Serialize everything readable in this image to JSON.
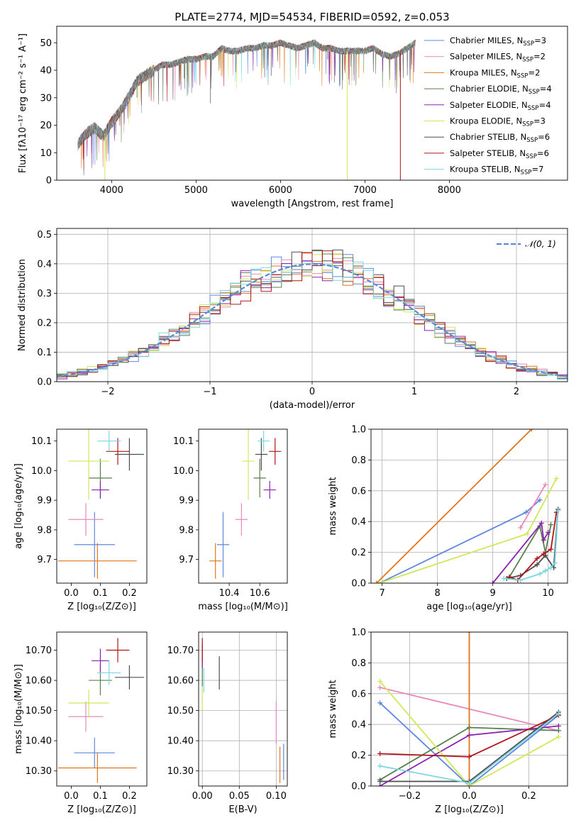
{
  "title": "PLATE=2774, MJD=54534, FIBERID=0592, z=0.053",
  "colors": {
    "Chabrier MILES": "#5f87e0",
    "Salpeter MILES": "#e889b9",
    "Kroupa MILES": "#e0761a",
    "Chabrier ELODIE": "#5a7f4e",
    "Salpeter ELODIE": "#8b22b0",
    "Kroupa ELODIE": "#cfe85a",
    "Chabrier STELIB": "#4e4e4e",
    "Salpeter STELIB": "#b01419",
    "Kroupa STELIB": "#7ad8e0",
    "normal": "#5b8ad6",
    "grid": "#b0b0b0"
  },
  "chart_data": [
    {
      "id": "spectrum",
      "type": "line",
      "title": "PLATE=2774, MJD=54534, FIBERID=0592, z=0.053",
      "xlabel": "wavelength [Angstrom, rest frame]",
      "ylabel": "Flux [fλ10⁻¹⁷ erg cm⁻² s⁻¹ A⁻¹]",
      "xlim": [
        3350,
        9400
      ],
      "ylim": [
        0,
        56
      ],
      "xticks": [
        4000,
        5000,
        6000,
        7000,
        8000
      ],
      "yticks": [
        0,
        10,
        20,
        30,
        40,
        50
      ],
      "grid": false,
      "legend_position": "upper right",
      "x_range_data": [
        3600,
        7600
      ],
      "envelope": {
        "x": [
          3600,
          3700,
          3800,
          3900,
          4000,
          4100,
          4200,
          4300,
          4400,
          4500,
          4600,
          4700,
          4800,
          4900,
          5000,
          5100,
          5200,
          5300,
          5400,
          5500,
          5600,
          5700,
          5800,
          5900,
          6000,
          6100,
          6200,
          6300,
          6400,
          6500,
          6600,
          6700,
          6800,
          6900,
          7000,
          7100,
          7200,
          7300,
          7400,
          7500,
          7600
        ],
        "y": [
          13,
          17,
          19,
          16,
          21,
          25,
          30,
          36,
          38,
          40,
          42,
          42,
          43,
          44,
          44,
          45,
          45,
          48,
          47,
          47,
          48,
          48,
          49,
          49,
          50,
          49,
          48,
          49,
          50,
          48,
          48,
          47,
          47,
          47,
          47,
          48,
          46,
          45,
          46,
          48,
          50
        ]
      },
      "series": [
        {
          "name": "Chabrier MILES, N$_{SSP}$=3",
          "label_main": "Chabrier MILES, N",
          "label_sub": "SSP",
          "label_tail": "=3"
        },
        {
          "name": "Salpeter MILES, N$_{SSP}$=2",
          "label_main": "Salpeter MILES, N",
          "label_sub": "SSP",
          "label_tail": "=2"
        },
        {
          "name": "Kroupa MILES, N$_{SSP}$=2",
          "label_main": "Kroupa MILES, N",
          "label_sub": "SSP",
          "label_tail": "=2"
        },
        {
          "name": "Chabrier ELODIE, N$_{SSP}$=4",
          "label_main": "Chabrier ELODIE, N",
          "label_sub": "SSP",
          "label_tail": "=4"
        },
        {
          "name": "Salpeter ELODIE, N$_{SSP}$=4",
          "label_main": "Salpeter ELODIE, N",
          "label_sub": "SSP",
          "label_tail": "=4"
        },
        {
          "name": "Kroupa ELODIE, N$_{SSP}$=3",
          "label_main": "Kroupa ELODIE, N",
          "label_sub": "SSP",
          "label_tail": "=3"
        },
        {
          "name": "Chabrier STELIB, N$_{SSP}$=6",
          "label_main": "Chabrier STELIB, N",
          "label_sub": "SSP",
          "label_tail": "=6"
        },
        {
          "name": "Salpeter STELIB, N$_{SSP}$=6",
          "label_main": "Salpeter STELIB, N",
          "label_sub": "SSP",
          "label_tail": "=6"
        },
        {
          "name": "Kroupa STELIB, N$_{SSP}$=7",
          "label_main": "Kroupa STELIB, N",
          "label_sub": "SSP",
          "label_tail": "=7"
        }
      ],
      "drop_lines": [
        {
          "x": 3920,
          "color": "Kroupa ELODIE"
        },
        {
          "x": 6790,
          "color": "Kroupa ELODIE"
        },
        {
          "x": 7420,
          "color": "Salpeter STELIB"
        }
      ]
    },
    {
      "id": "residuals",
      "type": "histogram",
      "xlabel": "(data-model)/error",
      "ylabel": "Normed distribution",
      "xlim": [
        -2.5,
        2.5
      ],
      "ylim": [
        0,
        0.52
      ],
      "xticks": [
        -2,
        -1,
        0,
        1,
        2
      ],
      "yticks": [
        0.0,
        0.1,
        0.2,
        0.3,
        0.4,
        0.5
      ],
      "grid": true,
      "legend_position": "upper right",
      "legend_label": "𝒩(0, 1)",
      "bin_width": 0.1,
      "normal_curve": {
        "mean": 0,
        "sigma": 1
      }
    },
    {
      "id": "age_vs_Z",
      "type": "errorbar",
      "xlabel": "Z [log₁₀(Z/Z⊙)]",
      "ylabel": "age  [log₁₀(age/yr)]",
      "xlim": [
        -0.05,
        0.26
      ],
      "ylim": [
        9.62,
        10.14
      ],
      "xticks": [
        0.0,
        0.1,
        0.2
      ],
      "yticks": [
        9.7,
        9.8,
        9.9,
        10.0,
        10.1
      ],
      "grid": false,
      "points": [
        {
          "model": "Chabrier MILES",
          "x": 0.08,
          "xerr": 0.07,
          "y": 9.75,
          "yerr": 0.11
        },
        {
          "model": "Salpeter MILES",
          "x": 0.05,
          "xerr": 0.06,
          "y": 9.835,
          "yerr": 0.055
        },
        {
          "model": "Kroupa MILES",
          "x": 0.09,
          "xerr": 0.135,
          "y": 9.695,
          "yerr": 0.06
        },
        {
          "model": "Chabrier ELODIE",
          "x": 0.1,
          "xerr": 0.04,
          "y": 9.975,
          "yerr": 0.065
        },
        {
          "model": "Salpeter ELODIE",
          "x": 0.1,
          "xerr": 0.03,
          "y": 9.935,
          "yerr": 0.03
        },
        {
          "model": "Kroupa ELODIE",
          "x": 0.06,
          "xerr": 0.07,
          "y": 10.032,
          "yerr": 0.13
        },
        {
          "model": "Chabrier STELIB",
          "x": 0.2,
          "xerr": 0.05,
          "y": 10.055,
          "yerr": 0.055
        },
        {
          "model": "Salpeter STELIB",
          "x": 0.16,
          "xerr": 0.04,
          "y": 10.065,
          "yerr": 0.045
        },
        {
          "model": "Kroupa STELIB",
          "x": 0.13,
          "xerr": 0.04,
          "y": 10.1,
          "yerr": 0.035
        }
      ]
    },
    {
      "id": "age_vs_mass",
      "type": "errorbar",
      "xlabel": "mass [log₁₀(M/M⊙)]",
      "ylabel": "",
      "xlim": [
        10.2,
        10.78
      ],
      "ylim": [
        9.62,
        10.14
      ],
      "xticks": [
        10.4,
        10.6
      ],
      "yticks": [
        9.7,
        9.8,
        9.9,
        10.0,
        10.1
      ],
      "grid": false,
      "points": [
        {
          "model": "Chabrier MILES",
          "x": 10.36,
          "xerr": 0.04,
          "y": 9.75,
          "yerr": 0.11
        },
        {
          "model": "Salpeter MILES",
          "x": 10.48,
          "xerr": 0.04,
          "y": 9.835,
          "yerr": 0.055
        },
        {
          "model": "Kroupa MILES",
          "x": 10.31,
          "xerr": 0.04,
          "y": 9.695,
          "yerr": 0.06
        },
        {
          "model": "Chabrier ELODIE",
          "x": 10.6,
          "xerr": 0.04,
          "y": 9.975,
          "yerr": 0.065
        },
        {
          "model": "Salpeter ELODIE",
          "x": 10.665,
          "xerr": 0.04,
          "y": 9.935,
          "yerr": 0.03
        },
        {
          "model": "Kroupa ELODIE",
          "x": 10.525,
          "xerr": 0.04,
          "y": 10.032,
          "yerr": 0.13
        },
        {
          "model": "Chabrier STELIB",
          "x": 10.61,
          "xerr": 0.04,
          "y": 10.055,
          "yerr": 0.055
        },
        {
          "model": "Salpeter STELIB",
          "x": 10.7,
          "xerr": 0.04,
          "y": 10.065,
          "yerr": 0.045
        },
        {
          "model": "Kroupa STELIB",
          "x": 10.625,
          "xerr": 0.04,
          "y": 10.1,
          "yerr": 0.035
        }
      ]
    },
    {
      "id": "weight_vs_age",
      "type": "line",
      "xlabel": "age  [log₁₀(age/yr)]",
      "ylabel": "mass weight",
      "xlim": [
        6.8,
        10.35
      ],
      "ylim": [
        0,
        1.0
      ],
      "xticks": [
        7,
        8,
        9,
        10
      ],
      "yticks": [
        0.0,
        0.2,
        0.4,
        0.6,
        0.8,
        1.0
      ],
      "grid": true,
      "series": [
        {
          "model": "Chabrier MILES",
          "x": [
            6.95,
            9.6,
            9.85
          ],
          "y": [
            0.0,
            0.46,
            0.54
          ]
        },
        {
          "model": "Salpeter MILES",
          "x": [
            9.5,
            9.95
          ],
          "y": [
            0.36,
            0.64
          ]
        },
        {
          "model": "Kroupa MILES",
          "x": [
            6.9,
            9.7
          ],
          "y": [
            0.0,
            1.0
          ]
        },
        {
          "model": "Chabrier ELODIE",
          "x": [
            9.3,
            9.85,
            9.95,
            10.05
          ],
          "y": [
            0.04,
            0.37,
            0.2,
            0.38
          ]
        },
        {
          "model": "Salpeter ELODIE",
          "x": [
            9.0,
            9.88,
            9.92,
            10.0
          ],
          "y": [
            0.0,
            0.39,
            0.28,
            0.33
          ]
        },
        {
          "model": "Kroupa ELODIE",
          "x": [
            6.95,
            9.62,
            10.15
          ],
          "y": [
            0.0,
            0.32,
            0.68
          ]
        },
        {
          "model": "Chabrier STELIB",
          "x": [
            9.25,
            9.5,
            9.8,
            9.95,
            10.1,
            10.18
          ],
          "y": [
            0.03,
            0.05,
            0.12,
            0.18,
            0.1,
            0.48
          ]
        },
        {
          "model": "Salpeter STELIB",
          "x": [
            9.3,
            9.45,
            9.8,
            9.92,
            10.05,
            10.15
          ],
          "y": [
            0.04,
            0.02,
            0.16,
            0.19,
            0.22,
            0.46
          ]
        },
        {
          "model": "Kroupa STELIB",
          "x": [
            9.2,
            9.5,
            9.85,
            9.95,
            10.05,
            10.12,
            10.18
          ],
          "y": [
            0.03,
            0.02,
            0.06,
            0.08,
            0.1,
            0.13,
            0.47
          ]
        }
      ]
    },
    {
      "id": "mass_vs_Z",
      "type": "errorbar",
      "xlabel": "Z [log₁₀(Z/Z⊙)]",
      "ylabel": "mass [log₁₀(M/M⊙)]",
      "xlim": [
        -0.05,
        0.26
      ],
      "ylim": [
        10.25,
        10.76
      ],
      "xticks": [
        0.0,
        0.1,
        0.2
      ],
      "yticks": [
        10.3,
        10.4,
        10.5,
        10.6,
        10.7
      ],
      "grid": false,
      "points": [
        {
          "model": "Chabrier MILES",
          "x": 0.08,
          "xerr": 0.07,
          "y": 10.36,
          "yerr": 0.05
        },
        {
          "model": "Salpeter MILES",
          "x": 0.05,
          "xerr": 0.06,
          "y": 10.48,
          "yerr": 0.05
        },
        {
          "model": "Kroupa MILES",
          "x": 0.09,
          "xerr": 0.135,
          "y": 10.31,
          "yerr": 0.05
        },
        {
          "model": "Chabrier ELODIE",
          "x": 0.1,
          "xerr": 0.04,
          "y": 10.6,
          "yerr": 0.05
        },
        {
          "model": "Salpeter ELODIE",
          "x": 0.1,
          "xerr": 0.03,
          "y": 10.665,
          "yerr": 0.04
        },
        {
          "model": "Kroupa ELODIE",
          "x": 0.06,
          "xerr": 0.07,
          "y": 10.525,
          "yerr": 0.045
        },
        {
          "model": "Chabrier STELIB",
          "x": 0.2,
          "xerr": 0.05,
          "y": 10.61,
          "yerr": 0.04
        },
        {
          "model": "Salpeter STELIB",
          "x": 0.16,
          "xerr": 0.04,
          "y": 10.7,
          "yerr": 0.04
        },
        {
          "model": "Kroupa STELIB",
          "x": 0.13,
          "xerr": 0.04,
          "y": 10.625,
          "yerr": 0.04
        }
      ]
    },
    {
      "id": "mass_vs_ebv",
      "type": "errorbar",
      "xlabel": "E(B-V)",
      "ylabel": "",
      "xlim": [
        -0.005,
        0.115
      ],
      "ylim": [
        10.25,
        10.76
      ],
      "xticks": [
        0.0,
        0.05,
        0.1
      ],
      "xtick_labels": [
        "0.00",
        "0.05",
        "0.10"
      ],
      "yticks": [
        10.3,
        10.4,
        10.5,
        10.6,
        10.7
      ],
      "grid": true,
      "points": [
        {
          "model": "Chabrier MILES",
          "x": 0.11,
          "y": 10.33,
          "yerr": 0.06
        },
        {
          "model": "Salpeter MILES",
          "x": 0.1,
          "y": 10.46,
          "yerr": 0.07
        },
        {
          "model": "Kroupa MILES",
          "x": 0.105,
          "y": 10.32,
          "yerr": 0.06
        },
        {
          "model": "Chabrier ELODIE",
          "x": 0.0,
          "y": 10.62,
          "yerr": 0.04
        },
        {
          "model": "Salpeter ELODIE",
          "x": 0.0,
          "y": 10.68,
          "yerr": 0.04
        },
        {
          "model": "Kroupa ELODIE",
          "x": 0.0,
          "y": 10.54,
          "yerr": 0.04
        },
        {
          "model": "Chabrier STELIB",
          "x": 0.023,
          "y": 10.625,
          "yerr": 0.055
        },
        {
          "model": "Salpeter STELIB",
          "x": 0.0,
          "y": 10.7,
          "yerr": 0.04
        },
        {
          "model": "Kroupa STELIB",
          "x": 0.002,
          "y": 10.6,
          "yerr": 0.04
        }
      ]
    },
    {
      "id": "weight_vs_Z",
      "type": "line",
      "xlabel": "Z [log₁₀(Z/Z⊙)]",
      "ylabel": "mass weight",
      "xlim": [
        -0.33,
        0.33
      ],
      "ylim": [
        0,
        1.0
      ],
      "xticks": [
        -0.2,
        0.0,
        0.2
      ],
      "xtick_labels": [
        "−0.2",
        "0.0",
        "0.2"
      ],
      "yticks": [
        0.0,
        0.2,
        0.4,
        0.6,
        0.8,
        1.0
      ],
      "grid": true,
      "series": [
        {
          "model": "Chabrier MILES",
          "x": [
            -0.3,
            0.0,
            0.3
          ],
          "y": [
            0.54,
            0.0,
            0.46
          ]
        },
        {
          "model": "Salpeter MILES",
          "x": [
            -0.3,
            0.3
          ],
          "y": [
            0.64,
            0.36
          ]
        },
        {
          "model": "Kroupa MILES",
          "x": [
            0.0,
            0.0
          ],
          "y": [
            0.0,
            1.0
          ]
        },
        {
          "model": "Chabrier ELODIE",
          "x": [
            -0.3,
            0.0,
            0.3
          ],
          "y": [
            0.04,
            0.38,
            0.36
          ]
        },
        {
          "model": "Salpeter ELODIE",
          "x": [
            -0.3,
            0.0,
            0.3
          ],
          "y": [
            0.0,
            0.33,
            0.39
          ]
        },
        {
          "model": "Kroupa ELODIE",
          "x": [
            -0.3,
            0.0,
            0.3
          ],
          "y": [
            0.68,
            0.0,
            0.32
          ]
        },
        {
          "model": "Chabrier STELIB",
          "x": [
            -0.3,
            0.0,
            0.3
          ],
          "y": [
            0.03,
            0.03,
            0.48
          ]
        },
        {
          "model": "Salpeter STELIB",
          "x": [
            -0.3,
            0.0,
            0.3
          ],
          "y": [
            0.21,
            0.19,
            0.46
          ]
        },
        {
          "model": "Kroupa STELIB",
          "x": [
            -0.3,
            0.0,
            0.3
          ],
          "y": [
            0.13,
            0.02,
            0.47
          ]
        }
      ]
    }
  ]
}
